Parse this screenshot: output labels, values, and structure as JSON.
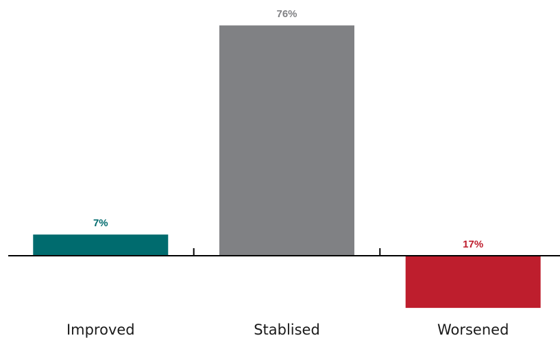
{
  "chart_data": {
    "type": "bar",
    "categories": [
      "Improved",
      "Stablised",
      "Worsened"
    ],
    "values": [
      7,
      76,
      -17
    ],
    "labels": [
      "7%",
      "76%",
      "17%"
    ],
    "colors": [
      "#006b6e",
      "#808184",
      "#be1e2d"
    ],
    "title": "",
    "xlabel": "",
    "ylabel": "",
    "ylim": [
      -17,
      76
    ],
    "grid": false,
    "legend": "none"
  }
}
